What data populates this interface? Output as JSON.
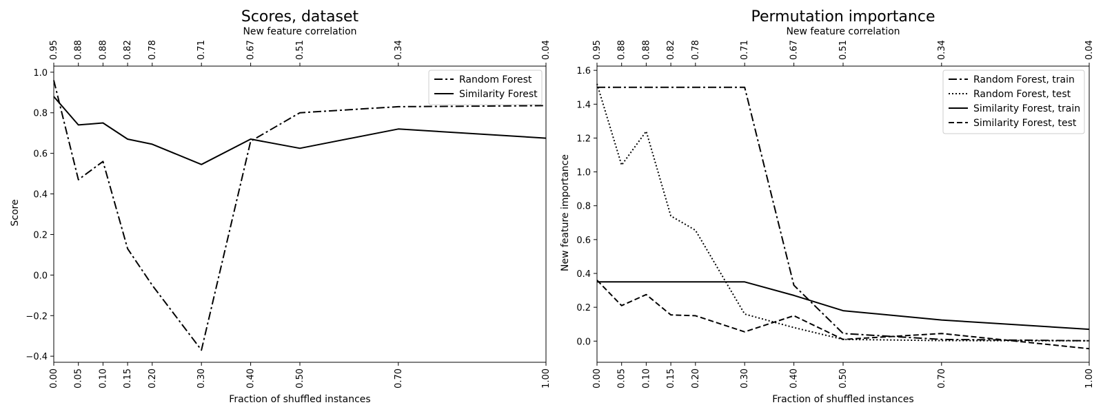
{
  "chart_data": [
    {
      "type": "line",
      "title": "Scores, dataset",
      "xlabel": "Fraction of shuffled instances",
      "ylabel": "Score",
      "top_xlabel": "New feature correlation",
      "x": [
        0.0,
        0.05,
        0.1,
        0.15,
        0.2,
        0.3,
        0.4,
        0.5,
        0.7,
        1.0
      ],
      "x_tick_labels": [
        "0.00",
        "0.05",
        "0.10",
        "0.15",
        "0.20",
        "0.30",
        "0.40",
        "0.50",
        "0.70",
        "1.00"
      ],
      "top_tick_labels": [
        "0.95",
        "0.88",
        "0.88",
        "0.82",
        "0.78",
        "0.71",
        "0.67",
        "0.51",
        "0.34",
        "0.04"
      ],
      "xlim": [
        0.0,
        1.0
      ],
      "ylim": [
        -0.43,
        1.03
      ],
      "y_ticks": [
        -0.4,
        -0.2,
        0.0,
        0.2,
        0.4,
        0.6,
        0.8,
        1.0
      ],
      "y_tick_labels": [
        "−0.4",
        "−0.2",
        "0.0",
        "0.2",
        "0.4",
        "0.6",
        "0.8",
        "1.0"
      ],
      "grid": false,
      "legend_position": "top-right",
      "series": [
        {
          "name": "Random Forest",
          "style": "dashdot",
          "color": "#000000",
          "values": [
            0.96,
            0.47,
            0.56,
            0.13,
            -0.05,
            -0.37,
            0.66,
            0.8,
            0.83,
            0.835
          ]
        },
        {
          "name": "Similarity Forest",
          "style": "solid",
          "color": "#000000",
          "values": [
            0.88,
            0.74,
            0.75,
            0.67,
            0.645,
            0.545,
            0.67,
            0.625,
            0.72,
            0.675
          ]
        }
      ]
    },
    {
      "type": "line",
      "title": "Permutation importance",
      "xlabel": "Fraction of shuffled instances",
      "ylabel": "New feature importance",
      "top_xlabel": "New feature correlation",
      "x": [
        0.0,
        0.05,
        0.1,
        0.15,
        0.2,
        0.3,
        0.4,
        0.5,
        0.7,
        1.0
      ],
      "x_tick_labels": [
        "0.00",
        "0.05",
        "0.10",
        "0.15",
        "0.20",
        "0.30",
        "0.40",
        "0.50",
        "0.70",
        "1.00"
      ],
      "top_tick_labels": [
        "0.95",
        "0.88",
        "0.88",
        "0.82",
        "0.78",
        "0.71",
        "0.67",
        "0.51",
        "0.34",
        "0.04"
      ],
      "xlim": [
        0.0,
        1.0
      ],
      "ylim": [
        -0.125,
        1.625
      ],
      "y_ticks": [
        0.0,
        0.2,
        0.4,
        0.6,
        0.8,
        1.0,
        1.2,
        1.4,
        1.6
      ],
      "y_tick_labels": [
        "0.0",
        "0.2",
        "0.4",
        "0.6",
        "0.8",
        "1.0",
        "1.2",
        "1.4",
        "1.6"
      ],
      "grid": false,
      "legend_position": "top-right",
      "series": [
        {
          "name": "Random Forest, train",
          "style": "dashdot",
          "color": "#000000",
          "values": [
            1.5,
            1.5,
            1.5,
            1.5,
            1.5,
            1.5,
            0.33,
            0.045,
            0.01,
            0.002
          ]
        },
        {
          "name": "Random Forest, test",
          "style": "dotted",
          "color": "#000000",
          "values": [
            1.52,
            1.04,
            1.24,
            0.74,
            0.655,
            0.16,
            0.08,
            0.01,
            0.003,
            0.002
          ]
        },
        {
          "name": "Similarity Forest, train",
          "style": "solid",
          "color": "#000000",
          "values": [
            0.35,
            0.35,
            0.35,
            0.35,
            0.35,
            0.35,
            0.27,
            0.18,
            0.125,
            0.07
          ]
        },
        {
          "name": "Similarity Forest, test",
          "style": "dashed",
          "color": "#000000",
          "values": [
            0.36,
            0.21,
            0.275,
            0.155,
            0.15,
            0.055,
            0.15,
            0.01,
            0.045,
            -0.045
          ]
        }
      ]
    }
  ]
}
